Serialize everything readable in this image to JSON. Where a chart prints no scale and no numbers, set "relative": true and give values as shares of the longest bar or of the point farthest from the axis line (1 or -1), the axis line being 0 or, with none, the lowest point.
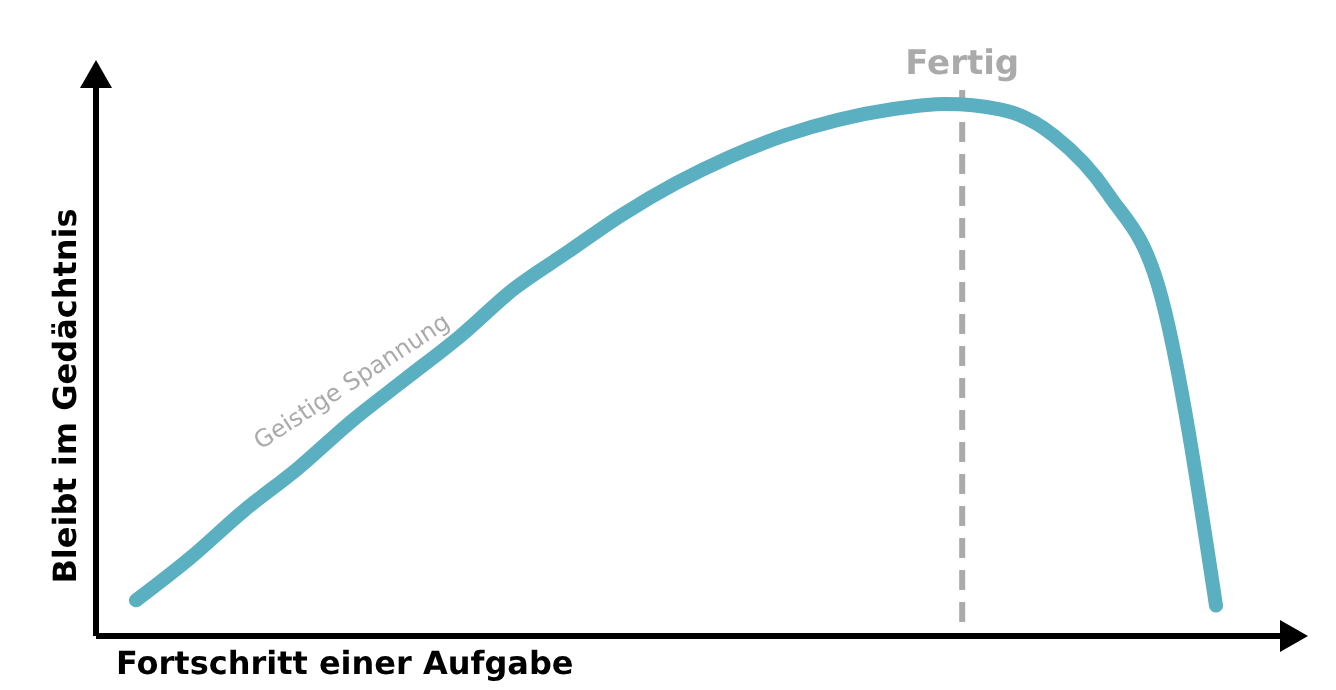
{
  "chart_data": {
    "type": "line",
    "relative": true,
    "xlabel": "Fortschritt einer Aufgabe",
    "ylabel": "Bleibt im Gedächtnis",
    "categories": [
      null,
      null,
      null,
      null,
      null,
      null,
      null,
      null,
      null,
      null,
      null,
      null,
      null,
      null,
      null,
      null,
      null,
      null,
      null,
      null,
      null
    ],
    "series": [
      {
        "color": "#5aafc0",
        "values": [
          0.06,
          0.14,
          0.23,
          0.31,
          0.4,
          0.48,
          0.56,
          0.65,
          0.72,
          0.79,
          0.85,
          0.9,
          0.94,
          0.97,
          0.99,
          1,
          0.99,
          0.94,
          0.83,
          0.63,
          0.05
        ]
      }
    ],
    "annotations": [
      "Geistige Spannung",
      "Fertig"
    ],
    "marker": "none",
    "line_style": "solid"
  }
}
